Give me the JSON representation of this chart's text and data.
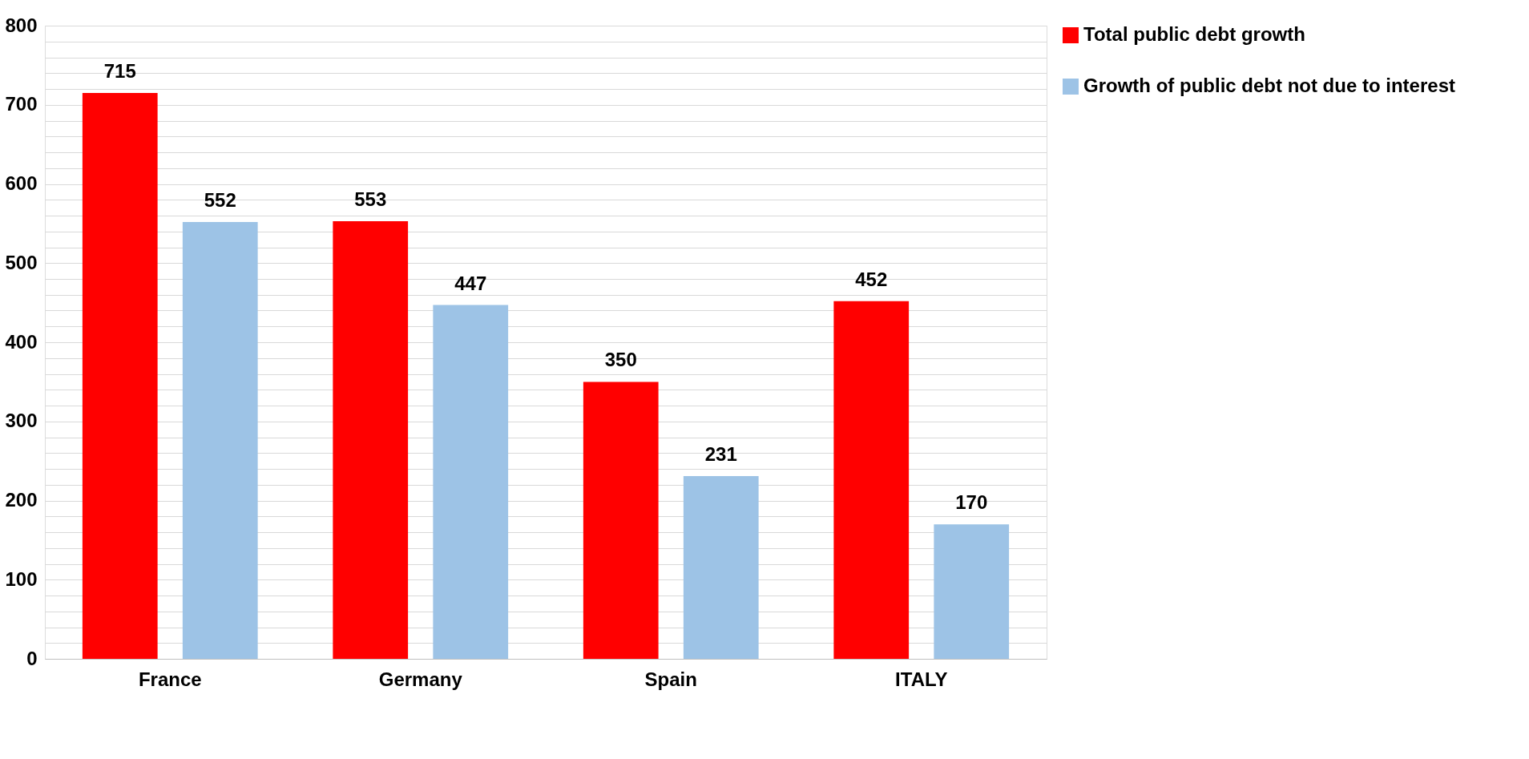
{
  "chart_data": {
    "type": "bar",
    "categories": [
      "France",
      "Germany",
      "Spain",
      "ITALY"
    ],
    "series": [
      {
        "name": "Total public debt growth",
        "color": "#ff0000",
        "values": [
          715,
          553,
          350,
          452
        ]
      },
      {
        "name": "Growth of public debt not due to interest",
        "color": "#9dc3e6",
        "values": [
          552,
          447,
          231,
          170
        ]
      }
    ],
    "ylim": [
      0,
      800
    ],
    "yticks": [
      0,
      {
        "value": 20,
        "label": null
      },
      {
        "value": 40,
        "label": null
      },
      {
        "value": 60,
        "label": null
      },
      {
        "value": 80,
        "label": null
      },
      100,
      {
        "value": 120,
        "label": null
      },
      {
        "value": 140,
        "label": null
      },
      {
        "value": 160,
        "label": null
      },
      {
        "value": 180,
        "label": null
      },
      200,
      {
        "value": 220,
        "label": null
      },
      {
        "value": 240,
        "label": null
      },
      {
        "value": 260,
        "label": null
      },
      {
        "value": 280,
        "label": null
      },
      300,
      {
        "value": 320,
        "label": null
      },
      {
        "value": 340,
        "label": null
      },
      {
        "value": 360,
        "label": null
      },
      {
        "value": 380,
        "label": null
      },
      400,
      {
        "value": 420,
        "label": null
      },
      {
        "value": 440,
        "label": null
      },
      {
        "value": 460,
        "label": null
      },
      {
        "value": 480,
        "label": null
      },
      500,
      {
        "value": 520,
        "label": null
      },
      {
        "value": 540,
        "label": null
      },
      {
        "value": 560,
        "label": null
      },
      {
        "value": 580,
        "label": null
      },
      600,
      {
        "value": 620,
        "label": null
      },
      {
        "value": 640,
        "label": null
      },
      {
        "value": 660,
        "label": null
      },
      {
        "value": 680,
        "label": null
      },
      700,
      {
        "value": 720,
        "label": null
      },
      {
        "value": 740,
        "label": null
      },
      {
        "value": 760,
        "label": null
      },
      {
        "value": 780,
        "label": null
      },
      800
    ],
    "grid": true,
    "legend": "right",
    "data_labels": true
  }
}
